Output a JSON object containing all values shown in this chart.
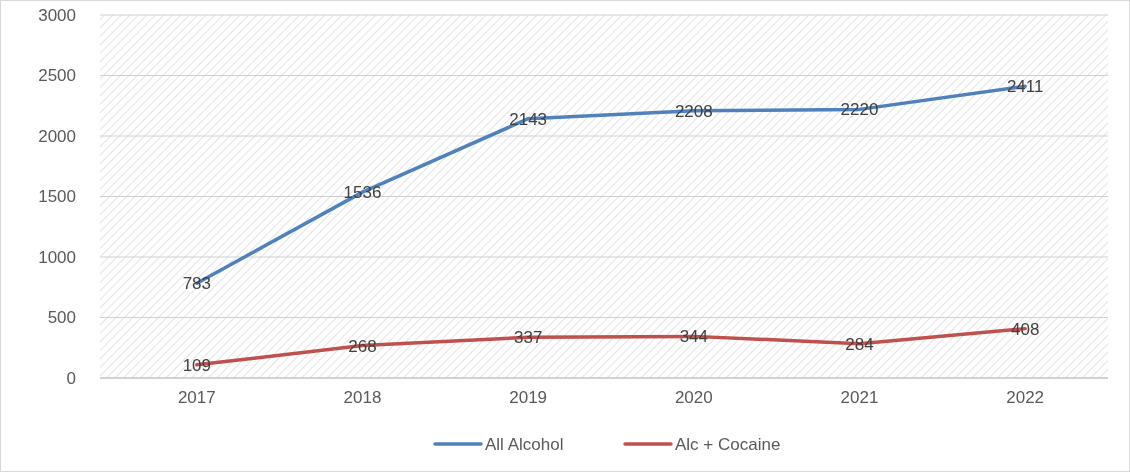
{
  "chart_data": {
    "type": "line",
    "categories": [
      "2017",
      "2018",
      "2019",
      "2020",
      "2021",
      "2022"
    ],
    "series": [
      {
        "name": "All Alcohol",
        "color": "#4f81bd",
        "values": [
          783,
          1536,
          2143,
          2208,
          2220,
          2411
        ]
      },
      {
        "name": "Alc + Cocaine",
        "color": "#c0504d",
        "values": [
          109,
          268,
          337,
          344,
          284,
          408
        ]
      }
    ],
    "ylim": [
      0,
      3000
    ],
    "yticks": [
      0,
      500,
      1000,
      1500,
      2000,
      2500,
      3000
    ],
    "grid": "y",
    "legend": "bottom",
    "data_labels": true,
    "marker": "none",
    "line_style": "solid"
  }
}
